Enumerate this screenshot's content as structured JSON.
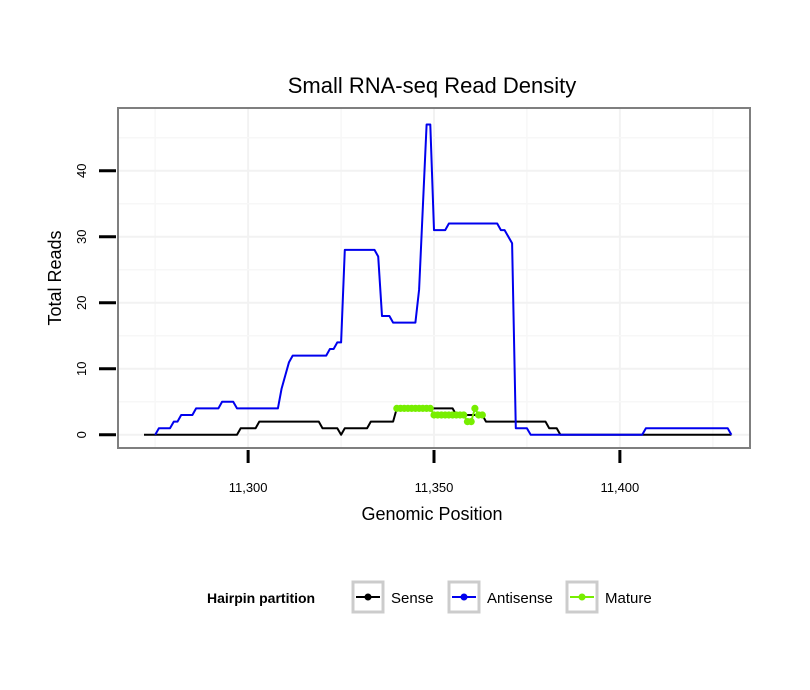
{
  "chart_data": {
    "type": "line",
    "title": "Small RNA-seq Read Density",
    "xlabel": "Genomic Position",
    "ylabel": "Total Reads",
    "xlim": [
      11265,
      11435.0
    ],
    "ylim": [
      -2,
      49.5
    ],
    "x_ticks": [
      11300,
      11350,
      11400
    ],
    "x_tick_labels": [
      "11,300",
      "11,350",
      "11,400"
    ],
    "y_ticks": [
      0,
      10,
      20,
      30,
      40
    ],
    "y_tick_labels": [
      "0",
      "10",
      "20",
      "30",
      "40"
    ],
    "grid": true,
    "legend": {
      "title": "Hairpin partition",
      "position": "bottom",
      "entries": [
        "Sense",
        "Antisense",
        "Mature"
      ]
    },
    "series": [
      {
        "name": "Sense",
        "color": "#000000",
        "points": [
          [
            11272,
            0
          ],
          [
            11297,
            0
          ],
          [
            11298,
            1
          ],
          [
            11302,
            1
          ],
          [
            11303,
            2
          ],
          [
            11304,
            2
          ],
          [
            11319,
            2
          ],
          [
            11320,
            1
          ],
          [
            11324,
            1
          ],
          [
            11325,
            0
          ],
          [
            11326,
            1
          ],
          [
            11332,
            1
          ],
          [
            11333,
            2
          ],
          [
            11339,
            2
          ],
          [
            11340,
            4
          ],
          [
            11355,
            4
          ],
          [
            11356,
            3
          ],
          [
            11363,
            3
          ],
          [
            11364,
            2
          ],
          [
            11380,
            2
          ],
          [
            11381,
            1
          ],
          [
            11383,
            1
          ],
          [
            11384,
            0
          ],
          [
            11430,
            0
          ]
        ]
      },
      {
        "name": "Antisense",
        "color": "#0000ee",
        "points": [
          [
            11275,
            0
          ],
          [
            11276,
            1
          ],
          [
            11279,
            1
          ],
          [
            11280,
            2
          ],
          [
            11281,
            2
          ],
          [
            11282,
            3
          ],
          [
            11285,
            3
          ],
          [
            11286,
            4
          ],
          [
            11292,
            4
          ],
          [
            11293,
            5
          ],
          [
            11296,
            5
          ],
          [
            11297,
            4
          ],
          [
            11308,
            4
          ],
          [
            11309,
            7
          ],
          [
            11310,
            9
          ],
          [
            11311,
            11
          ],
          [
            11312,
            12
          ],
          [
            11321,
            12
          ],
          [
            11322,
            13
          ],
          [
            11323,
            13
          ],
          [
            11324,
            14
          ],
          [
            11325,
            14
          ],
          [
            11326,
            28
          ],
          [
            11334,
            28
          ],
          [
            11335,
            27
          ],
          [
            11336,
            18
          ],
          [
            11338,
            18
          ],
          [
            11339,
            17
          ],
          [
            11345,
            17
          ],
          [
            11346,
            22
          ],
          [
            11348,
            47
          ],
          [
            11349,
            47
          ],
          [
            11350,
            31
          ],
          [
            11353,
            31
          ],
          [
            11354,
            32
          ],
          [
            11367,
            32
          ],
          [
            11368,
            31
          ],
          [
            11369,
            31
          ],
          [
            11371,
            29
          ],
          [
            11372,
            1
          ],
          [
            11375,
            1
          ],
          [
            11376,
            0
          ],
          [
            11406,
            0
          ],
          [
            11407,
            1
          ],
          [
            11429,
            1
          ],
          [
            11430,
            0
          ]
        ]
      },
      {
        "name": "Mature",
        "color": "#77ee00",
        "points": [
          [
            11340,
            4
          ],
          [
            11341,
            4
          ],
          [
            11342,
            4
          ],
          [
            11343,
            4
          ],
          [
            11344,
            4
          ],
          [
            11345,
            4
          ],
          [
            11346,
            4
          ],
          [
            11347,
            4
          ],
          [
            11348,
            4
          ],
          [
            11349,
            4
          ],
          [
            11350,
            3
          ],
          [
            11351,
            3
          ],
          [
            11352,
            3
          ],
          [
            11353,
            3
          ],
          [
            11354,
            3
          ],
          [
            11355,
            3
          ],
          [
            11356,
            3
          ],
          [
            11357,
            3
          ],
          [
            11358,
            3
          ],
          [
            11359,
            2
          ],
          [
            11360,
            2
          ],
          [
            11361,
            4
          ],
          [
            11362,
            3
          ],
          [
            11363,
            3
          ]
        ]
      }
    ]
  }
}
